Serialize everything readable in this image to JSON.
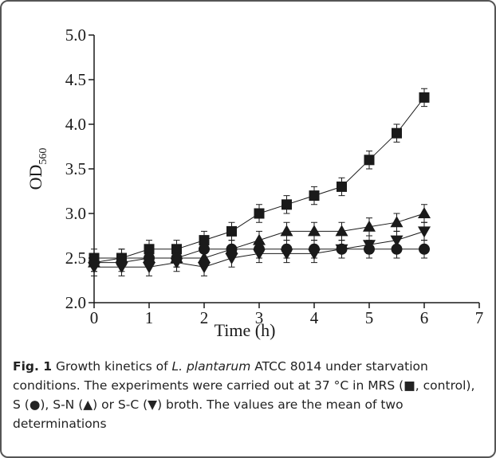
{
  "chart_data": {
    "type": "line",
    "xlabel": "Time (h)",
    "ylabel": "OD",
    "ylabel_sub": "560",
    "x": [
      0,
      0.5,
      1,
      1.5,
      2,
      2.5,
      3,
      3.5,
      4,
      4.5,
      5,
      5.5,
      6
    ],
    "xlim": [
      0,
      7
    ],
    "xticks": [
      0,
      1,
      2,
      3,
      4,
      5,
      6,
      7
    ],
    "ylim": [
      2,
      5
    ],
    "yticks": [
      {
        "value": 2,
        "label": "2.0"
      },
      2.5,
      {
        "value": 3,
        "label": "3.0"
      },
      3.5,
      {
        "value": 4,
        "label": "4.0"
      },
      4.5,
      {
        "value": 5,
        "label": "5.0"
      }
    ],
    "color": "#1a1a1a",
    "series": [
      {
        "marker": "square",
        "values": [
          2.5,
          2.5,
          2.6,
          2.6,
          2.7,
          2.8,
          3.0,
          3.1,
          3.2,
          3.3,
          3.6,
          3.9,
          4.3
        ],
        "errors": [
          0.1,
          0.1,
          0.1,
          0.1,
          0.1,
          0.1,
          0.1,
          0.1,
          0.1,
          0.1,
          0.1,
          0.1,
          0.1
        ]
      },
      {
        "marker": "circle",
        "values": [
          2.45,
          2.45,
          2.5,
          2.5,
          2.6,
          2.6,
          2.6,
          2.6,
          2.6,
          2.6,
          2.6,
          2.6,
          2.6
        ],
        "errors": [
          0.1,
          0.1,
          0.1,
          0.1,
          0.1,
          0.1,
          0.1,
          0.1,
          0.1,
          0.1,
          0.1,
          0.1,
          0.1
        ]
      },
      {
        "marker": "triangle-up",
        "values": [
          2.45,
          2.5,
          2.5,
          2.5,
          2.5,
          2.6,
          2.7,
          2.8,
          2.8,
          2.8,
          2.85,
          2.9,
          3.0
        ],
        "errors": [
          0.1,
          0.1,
          0.1,
          0.1,
          0.1,
          0.1,
          0.1,
          0.1,
          0.1,
          0.1,
          0.1,
          0.1,
          0.1
        ]
      },
      {
        "marker": "triangle-down",
        "values": [
          2.4,
          2.4,
          2.4,
          2.45,
          2.4,
          2.5,
          2.55,
          2.55,
          2.55,
          2.6,
          2.65,
          2.7,
          2.8
        ],
        "errors": [
          0.1,
          0.1,
          0.1,
          0.1,
          0.1,
          0.1,
          0.1,
          0.1,
          0.1,
          0.1,
          0.1,
          0.1,
          0.1
        ]
      }
    ]
  },
  "caption": {
    "label": "Fig. 1",
    "parts": [
      "Growth kinetics of ",
      "L. plantarum",
      " ATCC 8014 under starvation conditions. The experiments were carried out at 37 °C in MRS (■, control), S (●), S-N (▲) or S-C (▼) broth. The values are the mean of two determinations"
    ]
  }
}
